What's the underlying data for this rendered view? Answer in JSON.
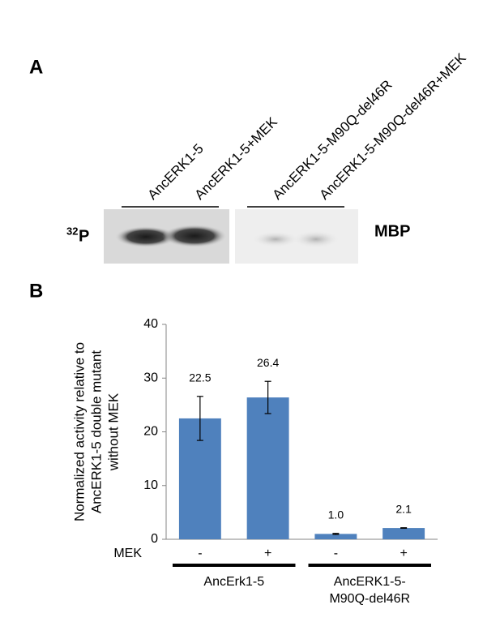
{
  "panel_a": {
    "label": "A",
    "lanes": [
      "AncERK1-5",
      "AncERK1-5+MEK",
      "AncERK1-5-M90Q-del46R",
      "AncERK1-5-M90Q-del46R+MEK"
    ],
    "isotope_mass": "32",
    "isotope": "P",
    "substrate": "MBP"
  },
  "chart_data": {
    "type": "bar",
    "panel_label": "B",
    "y_label": [
      "Normalized activity relative to",
      "AncERK1-5 double mutant",
      "without MEK"
    ],
    "x_label": "MEK",
    "categories": [
      "-",
      "+",
      "-",
      "+"
    ],
    "groups": [
      {
        "label": [
          "AncErk1-5"
        ],
        "size": 2
      },
      {
        "label": [
          "AncERK1-5-",
          "M90Q-del46R"
        ],
        "size": 2
      }
    ],
    "values": [
      22.5,
      26.4,
      1,
      2.1
    ],
    "value_labels": [
      "22.5",
      "26.4",
      "1.0",
      "2.1"
    ],
    "errors": [
      4.1,
      3,
      0.1,
      0.05
    ],
    "color": "#4f81bd",
    "ylim": [
      0,
      40
    ],
    "yticks": [
      0,
      10,
      20,
      30,
      40
    ]
  }
}
